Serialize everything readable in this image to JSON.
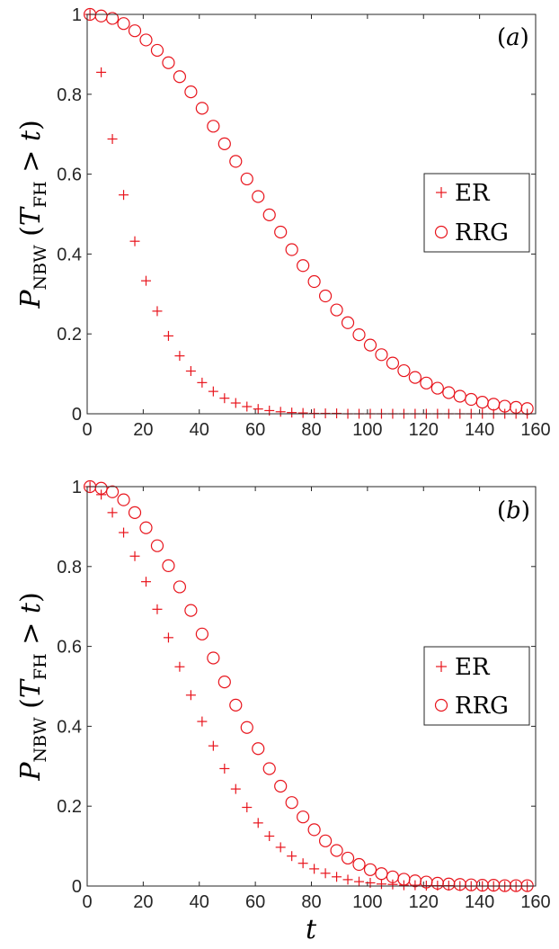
{
  "chart_data": [
    {
      "type": "scatter",
      "panel_label": "(a)",
      "title": "",
      "xlabel": "",
      "ylabel": {
        "main": "P",
        "sub": "NBW",
        "expr_open": "(",
        "var": "T",
        "var_sub": "FH",
        "rel": " > ",
        "t": "t",
        "expr_close": ")"
      },
      "xlim": [
        0,
        160
      ],
      "ylim": [
        0,
        1
      ],
      "xticks": [
        "0",
        "20",
        "40",
        "60",
        "80",
        "100",
        "120",
        "140",
        "160"
      ],
      "yticks": [
        "0",
        "0.2",
        "0.4",
        "0.6",
        "0.8",
        "1"
      ],
      "legend_position": "right",
      "color": "#e8141c",
      "series": [
        {
          "name": "ER",
          "marker": "plus",
          "x": [
            1,
            5,
            9,
            13,
            17,
            21,
            25,
            29,
            33,
            37,
            41,
            45,
            49,
            53,
            57,
            61,
            65,
            69,
            73,
            77,
            81,
            85,
            89,
            93,
            97,
            101,
            105,
            109,
            113,
            117,
            121,
            125,
            129,
            133,
            137,
            141,
            145,
            149,
            153,
            157
          ],
          "y": [
            1.0,
            0.855,
            0.688,
            0.548,
            0.432,
            0.333,
            0.257,
            0.195,
            0.145,
            0.107,
            0.078,
            0.056,
            0.039,
            0.027,
            0.018,
            0.012,
            0.008,
            0.005,
            0.003,
            0.002,
            0.001,
            0.001,
            0.001,
            0,
            0,
            0,
            0,
            0,
            0,
            0,
            0,
            0,
            0,
            0,
            0,
            0,
            0,
            0,
            0,
            0
          ]
        },
        {
          "name": "RRG",
          "marker": "circle",
          "x": [
            1,
            5,
            9,
            13,
            17,
            21,
            25,
            29,
            33,
            37,
            41,
            45,
            49,
            53,
            57,
            61,
            65,
            69,
            73,
            77,
            81,
            85,
            89,
            93,
            97,
            101,
            105,
            109,
            113,
            117,
            121,
            125,
            129,
            133,
            137,
            141,
            145,
            149,
            153,
            157
          ],
          "y": [
            1.0,
            0.996,
            0.99,
            0.977,
            0.959,
            0.936,
            0.91,
            0.879,
            0.844,
            0.806,
            0.765,
            0.72,
            0.676,
            0.632,
            0.588,
            0.544,
            0.498,
            0.455,
            0.411,
            0.371,
            0.331,
            0.295,
            0.26,
            0.228,
            0.198,
            0.172,
            0.148,
            0.127,
            0.108,
            0.091,
            0.077,
            0.064,
            0.053,
            0.044,
            0.036,
            0.029,
            0.024,
            0.019,
            0.016,
            0.013
          ]
        }
      ]
    },
    {
      "type": "scatter",
      "panel_label": "(b)",
      "title": "",
      "xlabel": "t",
      "ylabel": {
        "main": "P",
        "sub": "NBW",
        "expr_open": "(",
        "var": "T",
        "var_sub": "FH",
        "rel": " > ",
        "t": "t",
        "expr_close": ")"
      },
      "xlim": [
        0,
        160
      ],
      "ylim": [
        0,
        1
      ],
      "xticks": [
        "0",
        "20",
        "40",
        "60",
        "80",
        "100",
        "120",
        "140",
        "160"
      ],
      "yticks": [
        "0",
        "0.2",
        "0.4",
        "0.6",
        "0.8",
        "1"
      ],
      "legend_position": "right",
      "color": "#e8141c",
      "series": [
        {
          "name": "ER",
          "marker": "plus",
          "x": [
            1,
            5,
            9,
            13,
            17,
            21,
            25,
            29,
            33,
            37,
            41,
            45,
            49,
            53,
            57,
            61,
            65,
            69,
            73,
            77,
            81,
            85,
            89,
            93,
            97,
            101,
            105,
            109,
            113,
            117,
            121,
            125,
            129,
            133,
            137,
            141,
            145,
            149,
            153,
            157
          ],
          "y": [
            1.0,
            0.98,
            0.935,
            0.885,
            0.826,
            0.762,
            0.693,
            0.622,
            0.549,
            0.478,
            0.412,
            0.351,
            0.294,
            0.243,
            0.197,
            0.158,
            0.125,
            0.097,
            0.075,
            0.057,
            0.043,
            0.032,
            0.023,
            0.016,
            0.011,
            0.008,
            0.005,
            0.004,
            0.002,
            0.002,
            0.001,
            0.001,
            0.001,
            0,
            0,
            0,
            0,
            0,
            0,
            0
          ]
        },
        {
          "name": "RRG",
          "marker": "circle",
          "x": [
            1,
            5,
            9,
            13,
            17,
            21,
            25,
            29,
            33,
            37,
            41,
            45,
            49,
            53,
            57,
            61,
            65,
            69,
            73,
            77,
            81,
            85,
            89,
            93,
            97,
            101,
            105,
            109,
            113,
            117,
            121,
            125,
            129,
            133,
            137,
            141,
            145,
            149,
            153,
            157
          ],
          "y": [
            1.0,
            0.996,
            0.987,
            0.967,
            0.935,
            0.897,
            0.852,
            0.802,
            0.749,
            0.69,
            0.631,
            0.571,
            0.511,
            0.453,
            0.397,
            0.344,
            0.294,
            0.25,
            0.209,
            0.173,
            0.141,
            0.113,
            0.089,
            0.07,
            0.054,
            0.041,
            0.031,
            0.023,
            0.017,
            0.013,
            0.01,
            0.007,
            0.005,
            0.004,
            0.003,
            0.002,
            0.002,
            0.001,
            0.001,
            0.001
          ]
        }
      ]
    }
  ]
}
